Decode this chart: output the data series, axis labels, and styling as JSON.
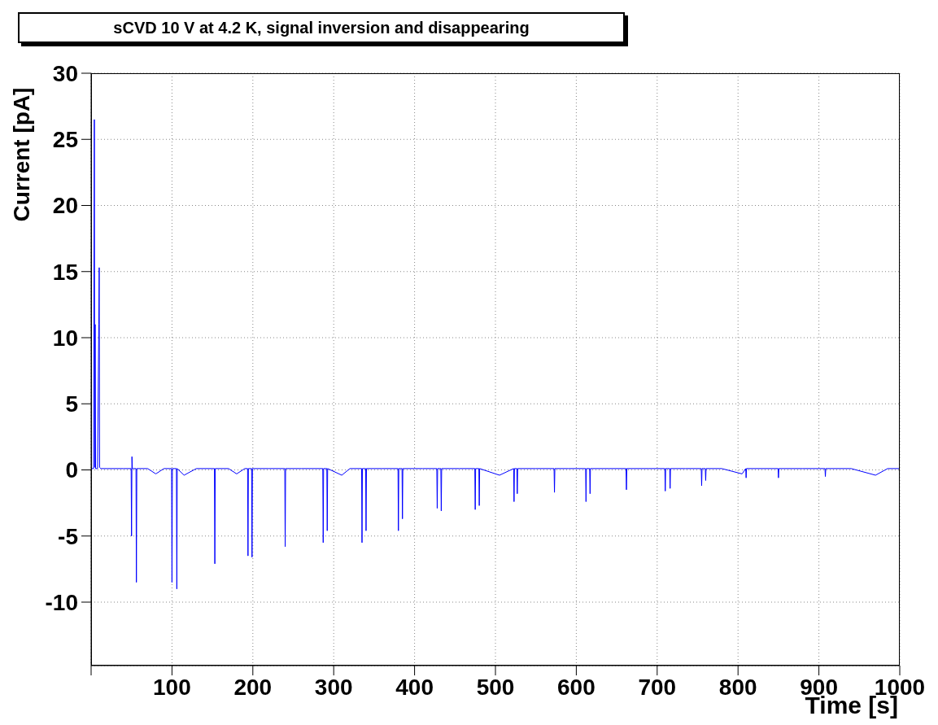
{
  "chart_data": {
    "type": "line",
    "title": "sCVD 10 V at 4.2 K, signal inversion and disappearing",
    "xlabel": "Time [s]",
    "ylabel": "Current [pA]",
    "xlim": [
      0,
      1000
    ],
    "ylim": [
      -14.8,
      30
    ],
    "xticks": [
      {
        "value": 0,
        "label": null
      },
      100,
      200,
      300,
      400,
      500,
      600,
      700,
      800,
      900,
      1000
    ],
    "yticks": [
      -10,
      -5,
      0,
      5,
      10,
      15,
      20,
      25,
      30
    ],
    "grid": true,
    "marker": "none",
    "line_style": "solid",
    "series": [
      {
        "color": "#0000ff",
        "x": [
          0,
          3,
          4,
          4.5,
          5,
          5.5,
          6,
          8,
          9.5,
          10,
          10.5,
          12,
          20,
          40,
          49.5,
          50,
          50.5,
          51,
          51.5,
          55.5,
          56,
          56.5,
          70,
          80,
          90,
          99.5,
          100,
          100.5,
          105.5,
          106,
          106.5,
          115,
          130,
          152.5,
          153,
          153.5,
          170,
          180,
          190,
          193.5,
          194,
          194.5,
          198.5,
          199,
          199.5,
          220,
          239.5,
          240,
          240.5,
          260,
          286.5,
          287,
          287.5,
          291.5,
          292,
          292.5,
          310,
          320,
          334.5,
          335,
          335.5,
          339.5,
          340,
          340.5,
          360,
          379.5,
          380,
          380.5,
          384.5,
          385,
          385.5,
          410,
          427.5,
          428,
          428.5,
          432.5,
          433,
          433.5,
          455,
          474.5,
          475,
          475.5,
          479.5,
          480,
          480.5,
          505,
          522.5,
          523,
          523.5,
          526.5,
          527,
          527.5,
          550,
          572.5,
          573,
          573.5,
          590,
          611.5,
          612,
          612.5,
          616.5,
          617,
          617.5,
          640,
          661.5,
          662,
          662.5,
          690,
          709.5,
          710,
          710.5,
          715.5,
          716,
          716.5,
          735,
          754.5,
          755,
          755.5,
          759.5,
          760,
          760.5,
          780,
          805,
          809.5,
          810,
          810.5,
          830,
          849.5,
          850,
          850.5,
          880,
          907.5,
          908,
          908.5,
          940,
          970,
          985,
          1000
        ],
        "values": [
          0.1,
          0.1,
          26.5,
          0.2,
          11,
          0.1,
          0.1,
          0.1,
          11,
          15.3,
          0.2,
          0.1,
          0.1,
          0.1,
          0.1,
          -5,
          1,
          0.1,
          0.1,
          0.1,
          -8.5,
          0.1,
          0.1,
          -0.3,
          0.1,
          0.1,
          -8.5,
          0.1,
          0.1,
          -9,
          0.1,
          -0.4,
          0.1,
          0.1,
          -7.1,
          0.1,
          0.1,
          -0.3,
          0.1,
          0.1,
          -6.5,
          0.1,
          0.1,
          -6.6,
          0.1,
          0.1,
          0.1,
          -5.8,
          0.1,
          0.1,
          0.1,
          -5.5,
          0.1,
          0.1,
          -4.6,
          0.1,
          -0.4,
          0.1,
          0.1,
          -5.5,
          0.1,
          0.1,
          -4.6,
          0.1,
          0.1,
          0.1,
          -4.6,
          0.1,
          0.1,
          -3.7,
          0.1,
          0.1,
          0.1,
          -2.9,
          0.1,
          0.1,
          -3.1,
          0.1,
          0.1,
          0.1,
          -3,
          0.1,
          0.1,
          -2.7,
          0.1,
          -0.4,
          0.1,
          -2.4,
          0.1,
          0.1,
          -1.8,
          0.1,
          0.1,
          0.1,
          -1.7,
          0.1,
          0.1,
          0.1,
          -2.4,
          0.1,
          0.1,
          -1.8,
          0.1,
          0.1,
          0.1,
          -1.5,
          0.1,
          0.1,
          0.1,
          -1.6,
          0.1,
          0.1,
          -1.4,
          0.1,
          0.1,
          0.1,
          -1.2,
          0.1,
          0.1,
          -0.8,
          0.1,
          0.1,
          -0.3,
          0.1,
          -0.6,
          0.1,
          0.1,
          0.1,
          -0.6,
          0.1,
          0.1,
          0.1,
          -0.5,
          0.1,
          0.1,
          -0.4,
          0.1,
          0.1
        ]
      }
    ]
  }
}
